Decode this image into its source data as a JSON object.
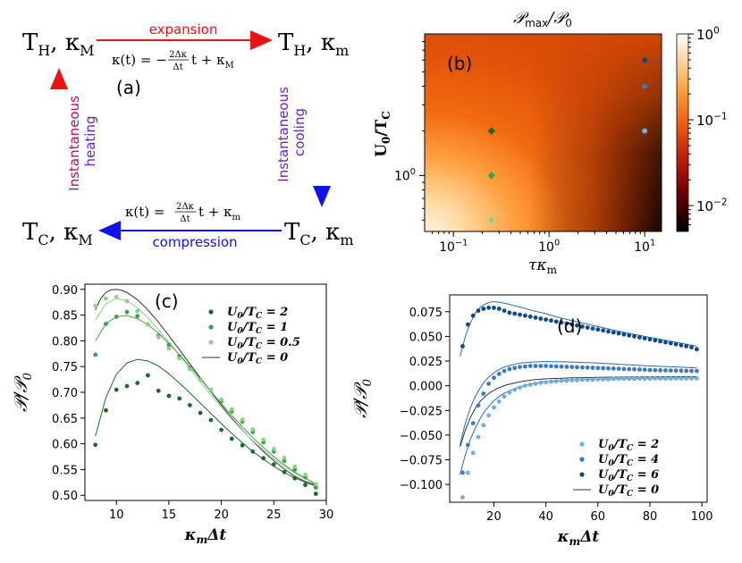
{
  "colors": {
    "red": "#ee1111",
    "blue": "#1111ee",
    "purple": "#9922cc",
    "dgreen": "#1a6b2a",
    "mgreen": "#3aa14a",
    "lgreen": "#8fd283",
    "lblue": "#6cb0dd",
    "mblue": "#3a7bbb",
    "dblue": "#0d4a87"
  },
  "cycle": {
    "panel_label": "(a)",
    "node_tl_main": "T",
    "node_tl_sub": "H",
    "node_tl_k": ", κ",
    "node_tl_ksub": "M",
    "node_tr_main": "T",
    "node_tr_sub": "H",
    "node_tr_k": ", κ",
    "node_tr_ksub": "m",
    "node_br_main": "T",
    "node_br_sub": "C",
    "node_br_k": ", κ",
    "node_br_ksub": "m",
    "node_bl_main": "T",
    "node_bl_sub": "C",
    "node_bl_k": ", κ",
    "node_bl_ksub": "M",
    "top_label": "expansion",
    "top_formula_a": "κ(t) = −",
    "top_formula_num": "2Δκ",
    "top_formula_den": "Δt",
    "top_formula_b": "t + κ",
    "top_formula_sub": "M",
    "bottom_label": "compression",
    "bottom_formula_a": "κ(t) =",
    "bottom_formula_num": "2Δκ",
    "bottom_formula_den": "Δt",
    "bottom_formula_b": "t + κ",
    "bottom_formula_sub": "m",
    "left_label_1": "Instantaneous",
    "left_label_2": "heating",
    "right_label_1": "Instantaneous",
    "right_label_2": "cooling"
  },
  "chart_data": [
    {
      "panel": "(b)",
      "type": "heatmap",
      "title": "𝒫max/𝒫0",
      "title_main": "𝒫",
      "title_sub1": "max",
      "title_rest": "/𝒫",
      "title_sub2": "0",
      "xlabel": "τκm",
      "xlabel_main": "τκ",
      "xlabel_sub": "m",
      "ylabel": "U0/TC",
      "ylabel_a": "U",
      "ylabel_sub1": "0",
      "ylabel_b": "/T",
      "ylabel_sub2": "C",
      "xscale": "log",
      "yscale": "log",
      "xlim": [
        0.05,
        15
      ],
      "ylim": [
        0.42,
        9
      ],
      "xticks": [
        0.1,
        1,
        10
      ],
      "xtick_labels": [
        [
          "10",
          "−1"
        ],
        [
          "10",
          "0"
        ],
        [
          "10",
          "1"
        ]
      ],
      "yticks": [
        1
      ],
      "ytick_labels": [
        [
          "10",
          "0"
        ]
      ],
      "colorbar_scale": "log",
      "colorbar_range": [
        0.005,
        1
      ],
      "colorbar_ticks": [
        1,
        0.1,
        0.01
      ],
      "colorbar_tick_labels": [
        [
          "10",
          "0"
        ],
        [
          "10",
          "−1"
        ],
        [
          "10",
          "−2"
        ]
      ],
      "colormap": "gist_heat",
      "markers": [
        {
          "tau_kappa": 0.25,
          "U0_over_TC": 2.0,
          "shape": "diamond",
          "color": "#1a6b2a"
        },
        {
          "tau_kappa": 0.25,
          "U0_over_TC": 1.0,
          "shape": "diamond",
          "color": "#3aa14a"
        },
        {
          "tau_kappa": 0.25,
          "U0_over_TC": 0.5,
          "shape": "diamond",
          "color": "#8fd283"
        },
        {
          "tau_kappa": 10,
          "U0_over_TC": 6.0,
          "shape": "circle",
          "color": "#0d4a87"
        },
        {
          "tau_kappa": 10,
          "U0_over_TC": 4.0,
          "shape": "circle",
          "color": "#3a7bbb"
        },
        {
          "tau_kappa": 10,
          "U0_over_TC": 2.0,
          "shape": "circle",
          "color": "#6cb0dd"
        }
      ]
    },
    {
      "panel": "(c)",
      "type": "scatter",
      "xlabel": "κmΔt",
      "xlabel_main": "κ",
      "xlabel_sub": "m",
      "xlabel_rest": "Δt",
      "ylabel": "𝒫/𝒫0",
      "ylabel_main": "𝒫/𝒫",
      "ylabel_sub": "0",
      "xlim": [
        7,
        30
      ],
      "ylim": [
        0.49,
        0.91
      ],
      "xticks": [
        10,
        15,
        20,
        25,
        30
      ],
      "yticks": [
        0.5,
        0.55,
        0.6,
        0.65,
        0.7,
        0.75,
        0.8,
        0.85,
        0.9
      ],
      "ytick_labels": [
        "0.50",
        "0.55",
        "0.60",
        "0.65",
        "0.70",
        "0.75",
        "0.80",
        "0.85",
        "0.90"
      ],
      "x": [
        8,
        9,
        10,
        11,
        12,
        13,
        14,
        15,
        16,
        17,
        18,
        19,
        20,
        21,
        22,
        23,
        24,
        25,
        26,
        27,
        28,
        29
      ],
      "series": [
        {
          "name": "U0/TC = 2",
          "label_a": "U",
          "label_sub1": "0",
          "label_b": "/T",
          "label_sub2": "C",
          "label_val": " = 2",
          "color": "#1a6b2a",
          "values": [
            0.598,
            0.665,
            0.705,
            0.712,
            0.718,
            0.733,
            0.703,
            0.693,
            0.688,
            0.675,
            0.66,
            0.646,
            0.627,
            0.61,
            0.597,
            0.585,
            0.572,
            0.56,
            0.545,
            0.533,
            0.52,
            0.503
          ]
        },
        {
          "name": "U0/TC = 1",
          "label_a": "U",
          "label_sub1": "0",
          "label_b": "/T",
          "label_sub2": "C",
          "label_val": " = 1",
          "color": "#3aa14a",
          "values": [
            0.773,
            0.833,
            0.847,
            0.856,
            0.848,
            0.832,
            0.81,
            0.792,
            0.77,
            0.747,
            0.725,
            0.704,
            0.683,
            0.663,
            0.643,
            0.623,
            0.603,
            0.585,
            0.567,
            0.55,
            0.535,
            0.515
          ]
        },
        {
          "name": "U0/TC = 0.5",
          "label_a": "U",
          "label_sub1": "0",
          "label_b": "/T",
          "label_sub2": "C",
          "label_val": " = 0.5",
          "color": "#8fd283",
          "values": [
            0.868,
            0.882,
            0.885,
            0.877,
            0.858,
            0.832,
            0.807,
            0.785,
            0.766,
            0.745,
            0.724,
            0.705,
            0.686,
            0.667,
            0.647,
            0.628,
            0.608,
            0.59,
            0.573,
            0.556,
            0.54,
            0.522
          ]
        }
      ],
      "curves": [
        {
          "name": "U0/TC = 0",
          "label_a": "U",
          "label_sub1": "0",
          "label_b": "/T",
          "label_sub2": "C",
          "label_val": " = 0",
          "color": "#333333",
          "legend": true,
          "x": [
            8,
            8.5,
            9,
            9.5,
            10,
            10.5,
            11,
            12,
            13,
            14,
            15,
            16,
            17,
            18,
            19,
            20,
            21,
            22,
            23,
            24,
            25,
            26,
            27,
            28,
            29
          ],
          "values": [
            0.86,
            0.882,
            0.894,
            0.899,
            0.9,
            0.898,
            0.894,
            0.88,
            0.86,
            0.836,
            0.81,
            0.783,
            0.755,
            0.728,
            0.701,
            0.675,
            0.65,
            0.627,
            0.605,
            0.585,
            0.567,
            0.551,
            0.537,
            0.527,
            0.52
          ]
        },
        {
          "name": "fit U0/TC = 0.5",
          "color": "#8fd283",
          "legend": false,
          "x": [
            8,
            9,
            10,
            11,
            12,
            13,
            14,
            15,
            16,
            17,
            18,
            19,
            20,
            21,
            22,
            23,
            24,
            25,
            26,
            27,
            28,
            29
          ],
          "values": [
            0.84,
            0.872,
            0.882,
            0.878,
            0.864,
            0.845,
            0.822,
            0.797,
            0.772,
            0.746,
            0.72,
            0.695,
            0.671,
            0.648,
            0.626,
            0.606,
            0.588,
            0.571,
            0.556,
            0.543,
            0.532,
            0.522
          ]
        },
        {
          "name": "fit U0/TC = 1",
          "color": "#3aa14a",
          "legend": false,
          "x": [
            8,
            9,
            10,
            11,
            12,
            13,
            14,
            15,
            16,
            17,
            18,
            19,
            20,
            21,
            22,
            23,
            24,
            25,
            26,
            27,
            28,
            29
          ],
          "values": [
            0.8,
            0.833,
            0.847,
            0.849,
            0.843,
            0.831,
            0.815,
            0.795,
            0.773,
            0.75,
            0.726,
            0.702,
            0.678,
            0.655,
            0.633,
            0.612,
            0.593,
            0.575,
            0.559,
            0.545,
            0.533,
            0.522
          ]
        },
        {
          "name": "fit U0/TC = 2",
          "color": "#1a6b2a",
          "legend": false,
          "x": [
            8,
            9,
            10,
            11,
            12,
            13,
            14,
            15,
            16,
            17,
            18,
            19,
            20,
            21,
            22,
            23,
            24,
            25,
            26,
            27,
            28,
            29
          ],
          "values": [
            0.615,
            0.69,
            0.735,
            0.757,
            0.764,
            0.761,
            0.751,
            0.736,
            0.718,
            0.699,
            0.679,
            0.659,
            0.639,
            0.62,
            0.602,
            0.585,
            0.57,
            0.556,
            0.544,
            0.534,
            0.525,
            0.518
          ]
        }
      ]
    },
    {
      "panel": "(d)",
      "type": "scatter",
      "xlabel": "κmΔt",
      "xlabel_main": "κ",
      "xlabel_sub": "m",
      "xlabel_rest": "Δt",
      "ylabel": "𝒫/𝒫0",
      "ylabel_main": "𝒫/𝒫",
      "ylabel_sub": "0",
      "xlim": [
        3,
        102
      ],
      "ylim": [
        -0.118,
        0.092
      ],
      "xticks": [
        20,
        40,
        60,
        80,
        100
      ],
      "yticks": [
        -0.1,
        -0.075,
        -0.05,
        -0.025,
        0,
        0.025,
        0.05,
        0.075
      ],
      "ytick_labels": [
        "−0.100",
        "−0.075",
        "−0.050",
        "−0.025",
        "0.000",
        "0.025",
        "0.050",
        "0.075"
      ],
      "x": [
        8,
        10,
        12,
        14,
        16,
        18,
        20,
        22,
        24,
        26,
        28,
        30,
        32,
        34,
        36,
        38,
        40,
        42,
        44,
        46,
        48,
        50,
        52,
        54,
        56,
        58,
        60,
        62,
        64,
        66,
        68,
        70,
        72,
        74,
        76,
        78,
        80,
        82,
        84,
        86,
        88,
        90,
        92,
        94,
        96,
        98
      ],
      "series": [
        {
          "name": "U0/TC = 2",
          "label_a": "U",
          "label_sub1": "0",
          "label_b": "/T",
          "label_sub2": "C",
          "label_val": " = 2",
          "color": "#6cb0dd",
          "values": [
            -0.113,
            -0.088,
            -0.068,
            -0.052,
            -0.04,
            -0.03,
            -0.022,
            -0.016,
            -0.011,
            -0.007,
            -0.004,
            -0.002,
            0.0,
            0.001,
            0.002,
            0.003,
            0.0035,
            0.004,
            0.0045,
            0.005,
            0.005,
            0.0055,
            0.0055,
            0.006,
            0.006,
            0.006,
            0.0065,
            0.0065,
            0.0065,
            0.007,
            0.007,
            0.007,
            0.007,
            0.007,
            0.0072,
            0.0072,
            0.0072,
            0.0073,
            0.0073,
            0.0073,
            0.0074,
            0.0074,
            0.0074,
            0.0074,
            0.0075,
            0.0075
          ]
        },
        {
          "name": "U0/TC = 4",
          "label_a": "U",
          "label_sub1": "0",
          "label_b": "/T",
          "label_sub2": "C",
          "label_val": " = 4",
          "color": "#3a7bbb",
          "values": [
            -0.088,
            -0.06,
            -0.038,
            -0.02,
            -0.008,
            0.002,
            0.008,
            0.012,
            0.015,
            0.017,
            0.018,
            0.019,
            0.0195,
            0.02,
            0.02,
            0.02,
            0.02,
            0.0198,
            0.0196,
            0.0194,
            0.0192,
            0.019,
            0.0188,
            0.0186,
            0.0184,
            0.0182,
            0.018,
            0.0178,
            0.0176,
            0.0174,
            0.0172,
            0.017,
            0.0168,
            0.0166,
            0.0164,
            0.0162,
            0.016,
            0.0158,
            0.0156,
            0.0155,
            0.0154,
            0.0153,
            0.0152,
            0.0151,
            0.015,
            0.015
          ]
        },
        {
          "name": "U0/TC = 6",
          "label_a": "U",
          "label_sub1": "0",
          "label_b": "/T",
          "label_sub2": "C",
          "label_val": " = 6",
          "color": "#0d4a87",
          "values": [
            0.04,
            0.062,
            0.071,
            0.076,
            0.078,
            0.079,
            0.079,
            0.078,
            0.076,
            0.074,
            0.073,
            0.072,
            0.071,
            0.07,
            0.069,
            0.068,
            0.067,
            0.066,
            0.065,
            0.064,
            0.063,
            0.062,
            0.061,
            0.06,
            0.059,
            0.058,
            0.057,
            0.056,
            0.055,
            0.054,
            0.053,
            0.052,
            0.051,
            0.05,
            0.049,
            0.048,
            0.047,
            0.046,
            0.045,
            0.044,
            0.043,
            0.042,
            0.041,
            0.04,
            0.039,
            0.037
          ]
        }
      ],
      "curves": [
        {
          "name": "U0/TC = 0",
          "label_a": "U",
          "label_sub1": "0",
          "label_b": "/T",
          "label_sub2": "C",
          "label_val": " = 0",
          "color": "#333333",
          "legend": true,
          "x": [
            7,
            9,
            11,
            13,
            15,
            18,
            21,
            25,
            30,
            35,
            40,
            45,
            50,
            60,
            70,
            80,
            90,
            98
          ],
          "values": [
            -0.062,
            -0.045,
            -0.032,
            -0.022,
            -0.015,
            -0.008,
            -0.003,
            0.001,
            0.004,
            0.006,
            0.007,
            0.0075,
            0.008,
            0.0085,
            0.0088,
            0.009,
            0.0092,
            0.0093
          ]
        },
        {
          "name": "fit U0/TC = 6",
          "color": "#2e6aa8",
          "legend": false,
          "x": [
            7,
            9,
            11,
            13,
            15,
            17,
            19,
            21,
            23,
            25,
            28,
            31,
            35,
            40,
            45,
            50,
            55,
            60,
            70,
            80,
            90,
            98
          ],
          "values": [
            0.03,
            0.05,
            0.064,
            0.074,
            0.08,
            0.083,
            0.085,
            0.085,
            0.084,
            0.083,
            0.081,
            0.079,
            0.076,
            0.073,
            0.069,
            0.066,
            0.063,
            0.06,
            0.054,
            0.049,
            0.044,
            0.04
          ]
        },
        {
          "name": "fit U0/TC = 4",
          "color": "#2e6aa8",
          "legend": false,
          "x": [
            7,
            9,
            11,
            13,
            15,
            17,
            19,
            21,
            24,
            27,
            30,
            35,
            40,
            45,
            50,
            60,
            70,
            80,
            90,
            98
          ],
          "values": [
            -0.06,
            -0.038,
            -0.022,
            -0.01,
            -0.001,
            0.006,
            0.011,
            0.015,
            0.019,
            0.021,
            0.023,
            0.024,
            0.0245,
            0.0243,
            0.024,
            0.023,
            0.0215,
            0.02,
            0.019,
            0.018
          ]
        },
        {
          "name": "fit U0/TC = 2",
          "color": "#2e6aa8",
          "legend": false,
          "x": [
            7,
            9,
            11,
            13,
            15,
            17,
            20,
            23,
            26,
            30,
            35,
            40,
            45,
            50,
            60,
            70,
            80,
            90,
            98
          ],
          "values": [
            -0.09,
            -0.07,
            -0.054,
            -0.042,
            -0.032,
            -0.024,
            -0.015,
            -0.009,
            -0.005,
            -0.001,
            0.002,
            0.004,
            0.005,
            0.006,
            0.0068,
            0.0072,
            0.0075,
            0.0077,
            0.0078
          ]
        }
      ]
    }
  ]
}
